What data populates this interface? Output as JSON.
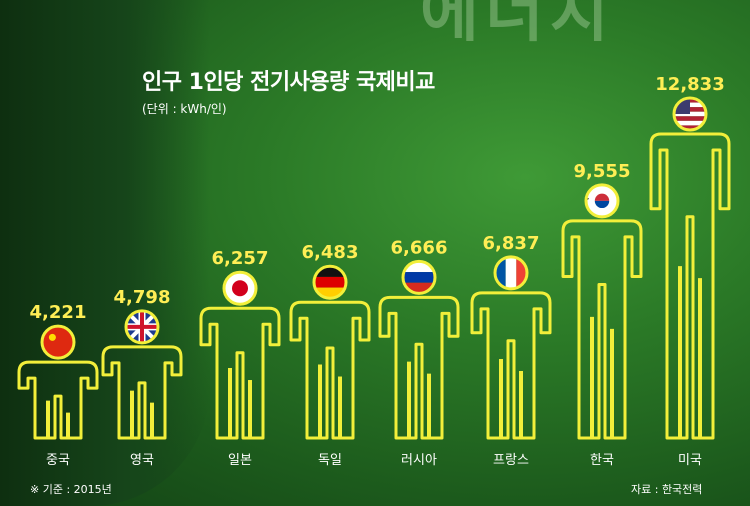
{
  "background_text": "에너지",
  "chart_data": {
    "type": "bar",
    "title": "인구 1인당 전기사용량 국제비교",
    "unit": "(단위 : kWh/인)",
    "categories": [
      "중국",
      "영국",
      "일본",
      "독일",
      "러시아",
      "프랑스",
      "한국",
      "미국"
    ],
    "values": [
      4221,
      4798,
      6257,
      6483,
      6666,
      6837,
      9555,
      12833
    ],
    "value_labels": [
      "4,221",
      "4,798",
      "6,257",
      "6,483",
      "6,666",
      "6,837",
      "9,555",
      "12,833"
    ],
    "flags": [
      "china-flag",
      "uk-flag",
      "japan-flag",
      "germany-flag",
      "russia-flag",
      "france-flag",
      "korea-flag",
      "usa-flag"
    ],
    "ylim": [
      0,
      12833
    ],
    "bar_color": "#f2ef3a",
    "label_color": "#ffee55"
  },
  "footnote": "※ 기준 : 2015년",
  "source": "자료 : 한국전력"
}
